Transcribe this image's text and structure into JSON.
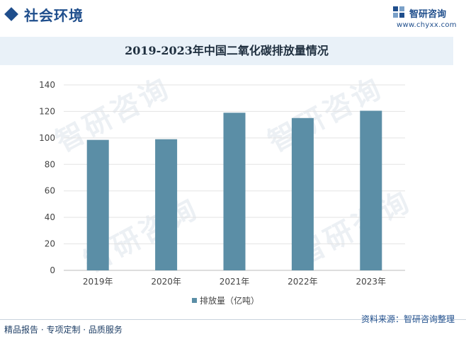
{
  "header": {
    "section_title": "社会环境",
    "brand_name": "智研咨询",
    "brand_url": "www.chyxx.com"
  },
  "chart_data": {
    "type": "bar",
    "title": "2019-2023年中国二氧化碳排放量情况",
    "categories": [
      "2019年",
      "2020年",
      "2021年",
      "2022年",
      "2023年"
    ],
    "series": [
      {
        "name": "排放量（亿吨）",
        "values": [
          98.5,
          99,
          119,
          115,
          120.5
        ]
      }
    ],
    "ylim": [
      0,
      140
    ],
    "yticks": [
      0,
      20,
      40,
      60,
      80,
      100,
      120,
      140
    ],
    "grid": true,
    "legend": "bottom",
    "bar_color": "#5b8ea6",
    "xlabel": "",
    "ylabel": ""
  },
  "watermark": {
    "text": "智研咨询"
  },
  "footer": {
    "left_text": "精品报告 · 专项定制 · 品质服务",
    "source_text": "资料来源：智研咨询整理"
  },
  "colors": {
    "accent": "#1f4e8c",
    "title_band": "#e9f1f8",
    "bar": "#5b8ea6"
  }
}
